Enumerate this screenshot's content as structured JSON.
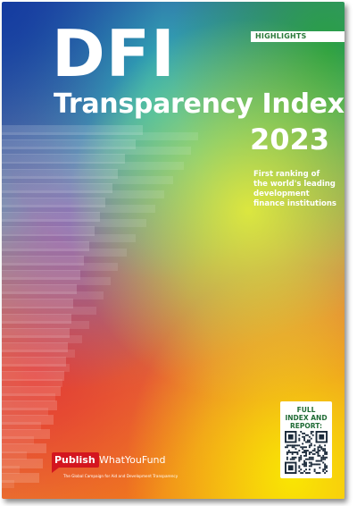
{
  "cover": {
    "label": "HIGHLIGHTS",
    "title": "DFI",
    "subtitle": "Transparency Index",
    "year": "2023",
    "tagline": [
      "First ranking of",
      "the world's leading",
      "development",
      "finance institutions"
    ],
    "qr_caption": [
      "FULL",
      "INDEX AND",
      "REPORT:"
    ]
  },
  "logo": {
    "publish": "Publish",
    "what_you_fund": "WhatYouFund",
    "tagline": "The Global Campaign for Aid and Development Transparency"
  },
  "colors": {
    "blue": "#143ca0",
    "green": "#28a03c",
    "yellow": "#fae100",
    "red": "#e63c32",
    "orange": "#f07820",
    "logo_red": "#d4161f",
    "highlight_text": "#2a7a3a"
  }
}
